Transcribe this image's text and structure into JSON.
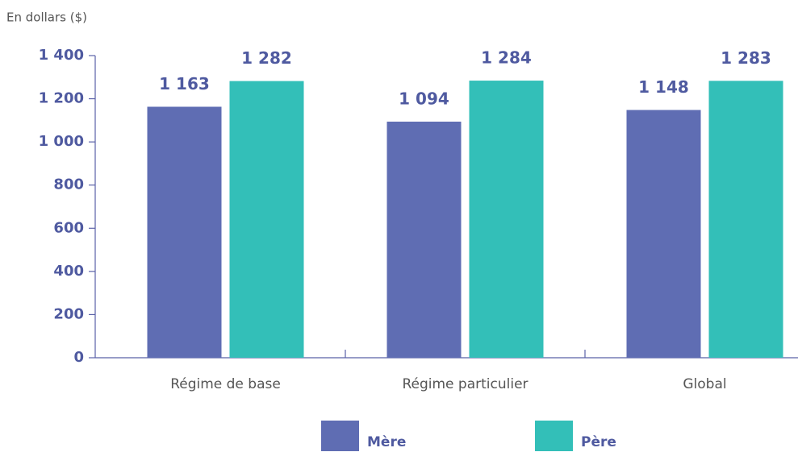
{
  "chart_data": {
    "type": "bar",
    "subtitle": "En dollars ($)",
    "categories": [
      "Régime de base",
      "Régime particulier",
      "Global"
    ],
    "series": [
      {
        "name": "Mère",
        "color": "#5f6db3",
        "values": [
          1163,
          1094,
          1148
        ],
        "value_labels": [
          "1 163",
          "1 094",
          "1 148"
        ]
      },
      {
        "name": "Père",
        "color": "#33bfb8",
        "values": [
          1282,
          1284,
          1283
        ],
        "value_labels": [
          "1 282",
          "1 284",
          "1 283"
        ]
      }
    ],
    "ylim": [
      0,
      1400
    ],
    "yticks": [
      0,
      200,
      400,
      600,
      800,
      {
        "value": 1000,
        "label": "1 000"
      },
      {
        "value": 1200,
        "label": "1 200"
      },
      {
        "value": 1400,
        "label": "1 400"
      }
    ],
    "legend": "bottom"
  }
}
